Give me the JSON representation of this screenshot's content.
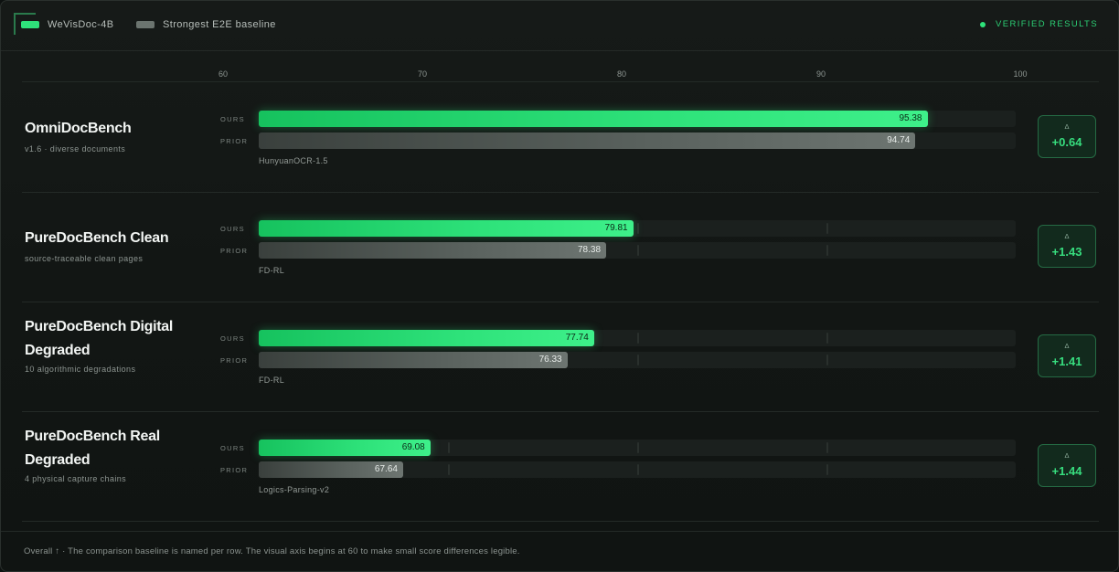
{
  "legend": {
    "ours_label": "WeVisDoc-4B",
    "prior_label": "Strongest E2E baseline",
    "verified_label": "VERIFIED RESULTS"
  },
  "labels": {
    "ours": "OURS",
    "prior": "PRIOR",
    "delta_symbol": "Δ"
  },
  "colors": {
    "ours": "#2ee27a",
    "prior": "#6b746f",
    "accent": "#37dd7e",
    "background": "#0d1110"
  },
  "chart_data": {
    "type": "bar",
    "orientation": "horizontal",
    "xlim": [
      60,
      100
    ],
    "ticks": [
      "60",
      "70",
      "80",
      "90",
      "100"
    ],
    "categories": [
      "OmniDocBench",
      "PureDocBench Clean",
      "PureDocBench Digital Degraded",
      "PureDocBench Real Degraded"
    ],
    "subtitles": [
      "v1.6 · diverse documents",
      "source-traceable clean pages",
      "10 algorithmic degradations",
      "4 physical capture chains"
    ],
    "baselines": [
      "HunyuanOCR-1.5",
      "FD-RL",
      "FD-RL",
      "Logics-Parsing-v2"
    ],
    "series": [
      {
        "name": "WeVisDoc-4B",
        "values": [
          95.38,
          79.81,
          77.74,
          69.08
        ],
        "labels": [
          "95.38",
          "79.81",
          "77.74",
          "69.08"
        ]
      },
      {
        "name": "Strongest E2E baseline",
        "values": [
          94.74,
          78.38,
          76.33,
          67.64
        ],
        "labels": [
          "94.74",
          "78.38",
          "76.33",
          "67.64"
        ]
      }
    ],
    "deltas": [
      "+0.64",
      "+1.43",
      "+1.41",
      "+1.44"
    ]
  },
  "footer": "Overall ↑ · The comparison baseline is named per row. The visual axis begins at 60 to make small score differences legible."
}
